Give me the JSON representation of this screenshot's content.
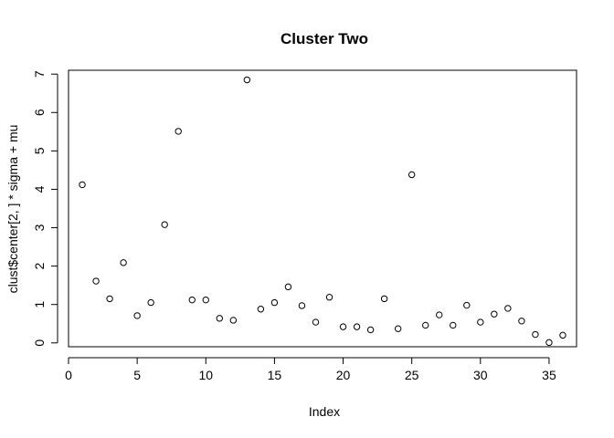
{
  "chart_data": {
    "type": "scatter",
    "title": "Cluster Two",
    "xlabel": "Index",
    "ylabel": "clust$center[2, ] * sigma + mu",
    "xlim": [
      0,
      37
    ],
    "ylim": [
      -0.1,
      7.1
    ],
    "xticks": [
      0,
      5,
      10,
      15,
      20,
      25,
      30,
      35
    ],
    "yticks": [
      0,
      1,
      2,
      3,
      4,
      5,
      6,
      7
    ],
    "x": [
      1,
      2,
      3,
      4,
      5,
      6,
      7,
      8,
      9,
      10,
      11,
      12,
      13,
      14,
      15,
      16,
      17,
      18,
      19,
      20,
      21,
      22,
      23,
      24,
      25,
      26,
      27,
      28,
      29,
      30,
      31,
      32,
      33,
      34,
      35,
      36
    ],
    "y": [
      4.12,
      1.61,
      1.15,
      2.09,
      0.71,
      1.05,
      3.08,
      5.51,
      1.12,
      1.12,
      0.64,
      0.59,
      6.85,
      0.88,
      1.05,
      1.46,
      0.97,
      0.54,
      1.19,
      0.42,
      0.42,
      0.34,
      1.15,
      0.37,
      4.38,
      0.46,
      0.73,
      0.46,
      0.98,
      0.54,
      0.75,
      0.9,
      0.57,
      0.22,
      0.01,
      0.2
    ],
    "marker": "open-circle",
    "grid": false,
    "legend": "none"
  }
}
